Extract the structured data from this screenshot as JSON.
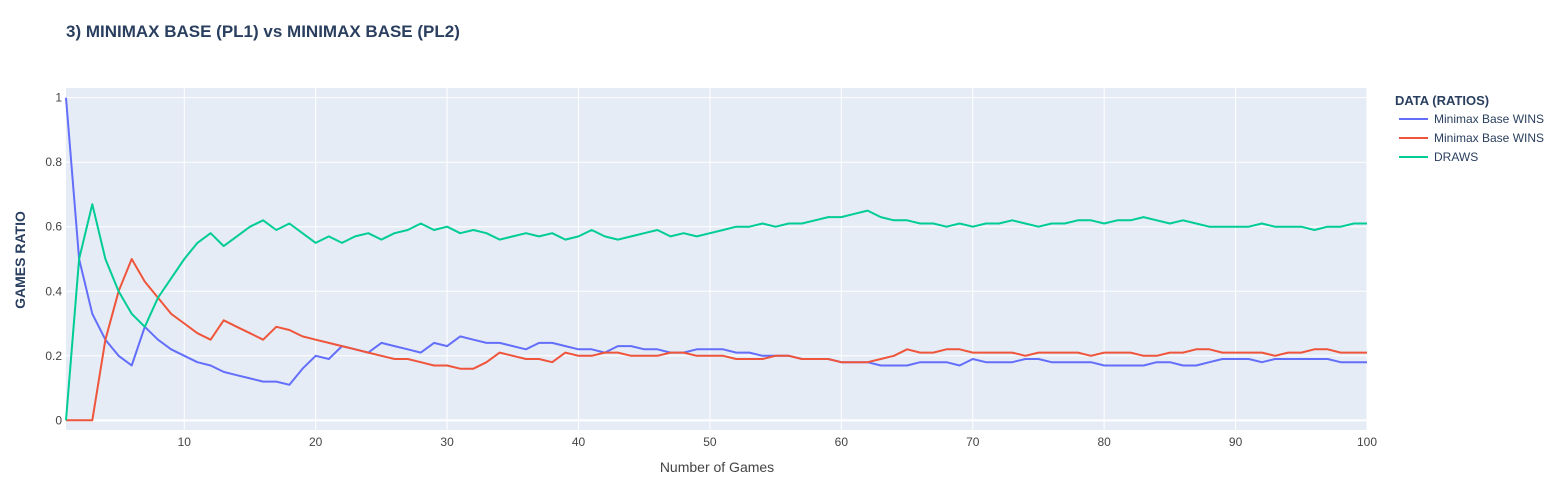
{
  "chart_data": {
    "type": "line",
    "title": "3) MINIMAX BASE (PL1) vs MINIMAX BASE (PL2)",
    "xlabel": "Number of Games",
    "ylabel": "GAMES RATIO",
    "xlim": [
      1,
      100
    ],
    "ylim": [
      -0.03,
      1.03
    ],
    "x_ticks": [
      10,
      20,
      30,
      40,
      50,
      60,
      70,
      80,
      90,
      100
    ],
    "y_ticks": [
      0,
      0.2,
      0.4,
      0.6,
      0.8,
      1
    ],
    "y_tick_labels": [
      "0",
      "0.2",
      "0.4",
      "0.6",
      "0.8",
      "1"
    ],
    "grid": true,
    "legend_title": "DATA (RATIOS)",
    "legend_position": "right",
    "series": [
      {
        "name": "Minimax Base WINS",
        "color": "#636efa",
        "x": [
          1,
          2,
          3,
          4,
          5,
          6,
          7,
          8,
          9,
          10,
          11,
          12,
          13,
          14,
          15,
          16,
          17,
          18,
          19,
          20,
          21,
          22,
          23,
          24,
          25,
          26,
          27,
          28,
          29,
          30,
          31,
          32,
          33,
          34,
          35,
          36,
          37,
          38,
          39,
          40,
          41,
          42,
          43,
          44,
          45,
          46,
          47,
          48,
          49,
          50,
          51,
          52,
          53,
          54,
          55,
          56,
          57,
          58,
          59,
          60,
          61,
          62,
          63,
          64,
          65,
          66,
          67,
          68,
          69,
          70,
          71,
          72,
          73,
          74,
          75,
          76,
          77,
          78,
          79,
          80,
          81,
          82,
          83,
          84,
          85,
          86,
          87,
          88,
          89,
          90,
          91,
          92,
          93,
          94,
          95,
          96,
          97,
          98,
          99,
          100
        ],
        "values": [
          1.0,
          0.5,
          0.33,
          0.25,
          0.2,
          0.17,
          0.29,
          0.25,
          0.22,
          0.2,
          0.18,
          0.17,
          0.15,
          0.14,
          0.13,
          0.12,
          0.12,
          0.11,
          0.16,
          0.2,
          0.19,
          0.23,
          0.22,
          0.21,
          0.24,
          0.23,
          0.22,
          0.21,
          0.24,
          0.23,
          0.26,
          0.25,
          0.24,
          0.24,
          0.23,
          0.22,
          0.24,
          0.24,
          0.23,
          0.22,
          0.22,
          0.21,
          0.23,
          0.23,
          0.22,
          0.22,
          0.21,
          0.21,
          0.22,
          0.22,
          0.22,
          0.21,
          0.21,
          0.2,
          0.2,
          0.2,
          0.19,
          0.19,
          0.19,
          0.18,
          0.18,
          0.18,
          0.17,
          0.17,
          0.17,
          0.18,
          0.18,
          0.18,
          0.17,
          0.19,
          0.18,
          0.18,
          0.18,
          0.19,
          0.19,
          0.18,
          0.18,
          0.18,
          0.18,
          0.17,
          0.17,
          0.17,
          0.17,
          0.18,
          0.18,
          0.17,
          0.17,
          0.18,
          0.19,
          0.19,
          0.19,
          0.18,
          0.19,
          0.19,
          0.19,
          0.19,
          0.19,
          0.18,
          0.18,
          0.18
        ]
      },
      {
        "name": "Minimax Base WINS",
        "color": "#ef553b",
        "x": [
          1,
          2,
          3,
          4,
          5,
          6,
          7,
          8,
          9,
          10,
          11,
          12,
          13,
          14,
          15,
          16,
          17,
          18,
          19,
          20,
          21,
          22,
          23,
          24,
          25,
          26,
          27,
          28,
          29,
          30,
          31,
          32,
          33,
          34,
          35,
          36,
          37,
          38,
          39,
          40,
          41,
          42,
          43,
          44,
          45,
          46,
          47,
          48,
          49,
          50,
          51,
          52,
          53,
          54,
          55,
          56,
          57,
          58,
          59,
          60,
          61,
          62,
          63,
          64,
          65,
          66,
          67,
          68,
          69,
          70,
          71,
          72,
          73,
          74,
          75,
          76,
          77,
          78,
          79,
          80,
          81,
          82,
          83,
          84,
          85,
          86,
          87,
          88,
          89,
          90,
          91,
          92,
          93,
          94,
          95,
          96,
          97,
          98,
          99,
          100
        ],
        "values": [
          0,
          0,
          0,
          0.25,
          0.4,
          0.5,
          0.43,
          0.38,
          0.33,
          0.3,
          0.27,
          0.25,
          0.31,
          0.29,
          0.27,
          0.25,
          0.29,
          0.28,
          0.26,
          0.25,
          0.24,
          0.23,
          0.22,
          0.21,
          0.2,
          0.19,
          0.19,
          0.18,
          0.17,
          0.17,
          0.16,
          0.16,
          0.18,
          0.21,
          0.2,
          0.19,
          0.19,
          0.18,
          0.21,
          0.2,
          0.2,
          0.21,
          0.21,
          0.2,
          0.2,
          0.2,
          0.21,
          0.21,
          0.2,
          0.2,
          0.2,
          0.19,
          0.19,
          0.19,
          0.2,
          0.2,
          0.19,
          0.19,
          0.19,
          0.18,
          0.18,
          0.18,
          0.19,
          0.2,
          0.22,
          0.21,
          0.21,
          0.22,
          0.22,
          0.21,
          0.21,
          0.21,
          0.21,
          0.2,
          0.21,
          0.21,
          0.21,
          0.21,
          0.2,
          0.21,
          0.21,
          0.21,
          0.2,
          0.2,
          0.21,
          0.21,
          0.22,
          0.22,
          0.21,
          0.21,
          0.21,
          0.21,
          0.2,
          0.21,
          0.21,
          0.22,
          0.22,
          0.21,
          0.21,
          0.21
        ]
      },
      {
        "name": "DRAWS",
        "color": "#00cc96",
        "x": [
          1,
          2,
          3,
          4,
          5,
          6,
          7,
          8,
          9,
          10,
          11,
          12,
          13,
          14,
          15,
          16,
          17,
          18,
          19,
          20,
          21,
          22,
          23,
          24,
          25,
          26,
          27,
          28,
          29,
          30,
          31,
          32,
          33,
          34,
          35,
          36,
          37,
          38,
          39,
          40,
          41,
          42,
          43,
          44,
          45,
          46,
          47,
          48,
          49,
          50,
          51,
          52,
          53,
          54,
          55,
          56,
          57,
          58,
          59,
          60,
          61,
          62,
          63,
          64,
          65,
          66,
          67,
          68,
          69,
          70,
          71,
          72,
          73,
          74,
          75,
          76,
          77,
          78,
          79,
          80,
          81,
          82,
          83,
          84,
          85,
          86,
          87,
          88,
          89,
          90,
          91,
          92,
          93,
          94,
          95,
          96,
          97,
          98,
          99,
          100
        ],
        "values": [
          0,
          0.5,
          0.67,
          0.5,
          0.4,
          0.33,
          0.29,
          0.38,
          0.44,
          0.5,
          0.55,
          0.58,
          0.54,
          0.57,
          0.6,
          0.62,
          0.59,
          0.61,
          0.58,
          0.55,
          0.57,
          0.55,
          0.57,
          0.58,
          0.56,
          0.58,
          0.59,
          0.61,
          0.59,
          0.6,
          0.58,
          0.59,
          0.58,
          0.56,
          0.57,
          0.58,
          0.57,
          0.58,
          0.56,
          0.57,
          0.59,
          0.57,
          0.56,
          0.57,
          0.58,
          0.59,
          0.57,
          0.58,
          0.57,
          0.58,
          0.59,
          0.6,
          0.6,
          0.61,
          0.6,
          0.61,
          0.61,
          0.62,
          0.63,
          0.63,
          0.64,
          0.65,
          0.63,
          0.62,
          0.62,
          0.61,
          0.61,
          0.6,
          0.61,
          0.6,
          0.61,
          0.61,
          0.62,
          0.61,
          0.6,
          0.61,
          0.61,
          0.62,
          0.62,
          0.61,
          0.62,
          0.62,
          0.63,
          0.62,
          0.61,
          0.62,
          0.61,
          0.6,
          0.6,
          0.6,
          0.6,
          0.61,
          0.6,
          0.6,
          0.6,
          0.59,
          0.6,
          0.6,
          0.61,
          0.61
        ]
      }
    ]
  }
}
